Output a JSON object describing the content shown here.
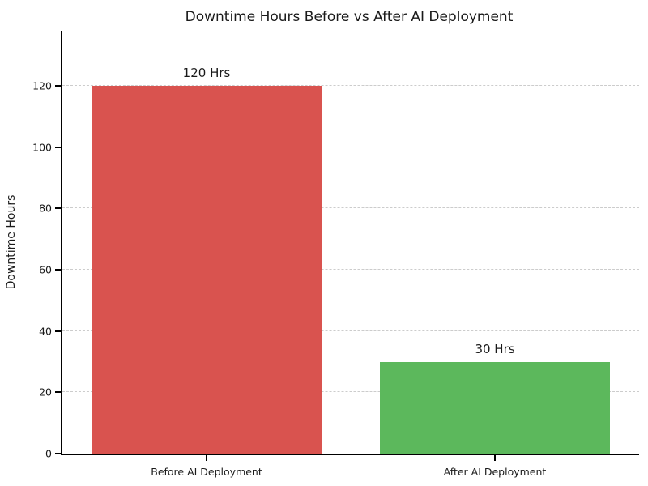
{
  "chart_data": {
    "type": "bar",
    "title": "Downtime Hours Before vs After AI Deployment",
    "categories": [
      "Before AI Deployment",
      "After AI Deployment"
    ],
    "values": [
      120,
      30
    ],
    "bar_labels": [
      "120 Hrs",
      "30 Hrs"
    ],
    "bar_colors": [
      "#d9534f",
      "#5cb85c"
    ],
    "xlabel": "",
    "ylabel": "Downtime Hours",
    "yticks": [
      0,
      20,
      40,
      60,
      80,
      100,
      120
    ],
    "ylim": [
      0,
      138
    ],
    "grid": "horizontal-dashed",
    "grid_color": "#cccccc",
    "legend_position": "none",
    "bar_width_fraction": 0.8
  }
}
